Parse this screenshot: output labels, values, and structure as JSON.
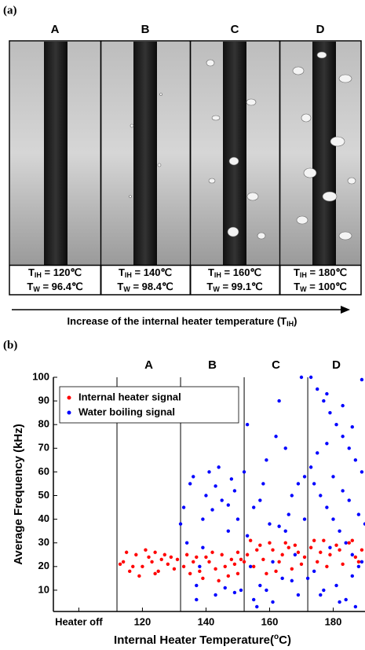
{
  "panel_a": {
    "label": "(a)",
    "panels": [
      {
        "name": "A",
        "lines": [
          [
            "T",
            "IH",
            " = 120℃"
          ],
          [
            "T",
            "W",
            " = 96.4℃"
          ]
        ]
      },
      {
        "name": "B",
        "lines": [
          [
            "T",
            "IH",
            " = 140℃"
          ],
          [
            "T",
            "W",
            " = 98.4℃"
          ]
        ]
      },
      {
        "name": "C",
        "lines": [
          [
            "T",
            "IH",
            " = 160℃"
          ],
          [
            "T",
            "W",
            " = 99.1℃"
          ]
        ]
      },
      {
        "name": "D",
        "lines": [
          [
            "T",
            "IH",
            " = 180℃"
          ],
          [
            "T",
            "W",
            " = 100℃"
          ]
        ]
      }
    ],
    "arrow_text": [
      "Increase of the internal heater temperature (T",
      "IH",
      ")"
    ]
  },
  "chart_data": {
    "type": "scatter",
    "label": "(b)",
    "x_label": [
      "Internal Heater Temperature(",
      "o",
      "C)"
    ],
    "y_label": "Average Frequency (kHz)",
    "xlim": [
      92,
      190
    ],
    "ylim": [
      1,
      100
    ],
    "xticks": [
      {
        "value": 100,
        "label": "Heater off"
      },
      120,
      140,
      160,
      180
    ],
    "yticks": [
      10,
      20,
      30,
      40,
      50,
      60,
      70,
      80,
      90,
      100
    ],
    "dividers": [
      112,
      132,
      152,
      172
    ],
    "regions": [
      "A",
      "B",
      "C",
      "D"
    ],
    "legend": "top-left",
    "series": [
      {
        "name": "Internal heater signal",
        "color": "#ff0000",
        "x": [
          114,
          116,
          118,
          120,
          122,
          124,
          126,
          128,
          130,
          115,
          119,
          123,
          127,
          117,
          121,
          125,
          129,
          113,
          131,
          124,
          133,
          135,
          137,
          139,
          141,
          143,
          145,
          147,
          149,
          151,
          134,
          138,
          142,
          146,
          150,
          136,
          140,
          144,
          148,
          150,
          153,
          155,
          157,
          159,
          161,
          163,
          165,
          167,
          169,
          171,
          154,
          158,
          162,
          166,
          170,
          156,
          160,
          164,
          168,
          152,
          173,
          175,
          177,
          179,
          181,
          183,
          185,
          187,
          189,
          174,
          178,
          182,
          186,
          188,
          176
        ],
        "values": [
          22,
          18,
          25,
          20,
          24,
          17,
          23,
          21,
          19,
          26,
          16,
          22,
          25,
          20,
          27,
          18,
          24,
          21,
          23,
          26,
          20,
          17,
          24,
          15,
          22,
          19,
          25,
          16,
          21,
          23,
          25,
          18,
          26,
          20,
          17,
          22,
          24,
          14,
          23,
          26,
          25,
          20,
          29,
          17,
          27,
          22,
          30,
          19,
          26,
          24,
          31,
          23,
          18,
          28,
          21,
          27,
          30,
          25,
          29,
          22,
          28,
          22,
          31,
          25,
          29,
          21,
          30,
          24,
          27,
          31,
          20,
          27,
          31,
          22,
          26
        ]
      },
      {
        "name": "Water boiling signal",
        "color": "#0000ff",
        "x": [
          133,
          135,
          137,
          139,
          141,
          143,
          145,
          147,
          149,
          151,
          134,
          136,
          138,
          140,
          142,
          144,
          146,
          148,
          150,
          132,
          139,
          143,
          147,
          137,
          149,
          153,
          155,
          157,
          159,
          161,
          163,
          165,
          167,
          169,
          171,
          152,
          154,
          156,
          158,
          160,
          162,
          164,
          166,
          168,
          170,
          153,
          157,
          161,
          165,
          169,
          155,
          159,
          163,
          167,
          171,
          173,
          175,
          177,
          179,
          181,
          183,
          185,
          187,
          189,
          174,
          176,
          178,
          180,
          182,
          184,
          186,
          188,
          172,
          177,
          182,
          187,
          173,
          175,
          178,
          180,
          183,
          185,
          188,
          190,
          174,
          176,
          179,
          181,
          184,
          186,
          189,
          178,
          183,
          186,
          189
        ],
        "values": [
          45,
          55,
          12,
          40,
          60,
          8,
          48,
          35,
          52,
          10,
          30,
          58,
          20,
          50,
          44,
          62,
          11,
          57,
          40,
          38,
          28,
          54,
          46,
          6,
          9,
          80,
          45,
          12,
          65,
          5,
          90,
          35,
          50,
          8,
          40,
          60,
          20,
          3,
          55,
          38,
          75,
          15,
          42,
          25,
          100,
          33,
          48,
          22,
          70,
          55,
          6,
          10,
          37,
          14,
          58,
          100,
          95,
          90,
          85,
          80,
          75,
          70,
          65,
          60,
          55,
          50,
          45,
          40,
          35,
          30,
          25,
          20,
          15,
          10,
          5,
          3,
          62,
          68,
          72,
          58,
          52,
          48,
          42,
          38,
          18,
          8,
          28,
          12,
          6,
          16,
          22,
          93,
          88,
          79,
          99
        ]
      }
    ]
  }
}
